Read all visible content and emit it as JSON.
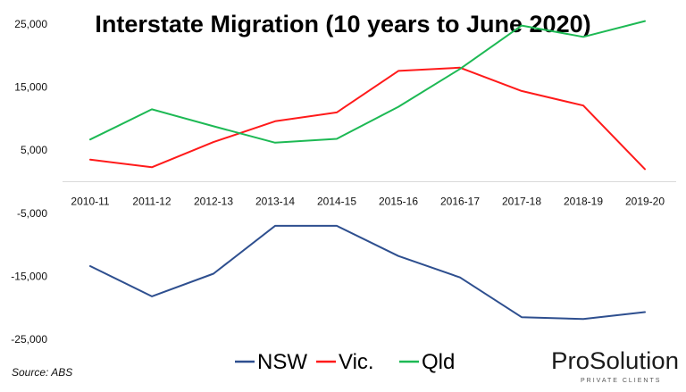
{
  "chart_data": {
    "type": "line",
    "title": "Interstate Migration (10 years to June 2020)",
    "categories": [
      "2010-11",
      "2011-12",
      "2012-13",
      "2013-14",
      "2014-15",
      "2015-16",
      "2016-17",
      "2017-18",
      "2018-19",
      "2019-20"
    ],
    "y_ticks": [
      "25,000",
      "15,000",
      "5,000",
      "-5,000",
      "-15,000",
      "-25,000"
    ],
    "ylim": [
      -28000,
      28000
    ],
    "grid": false,
    "legend_position": "bottom",
    "series": [
      {
        "name": "NSW",
        "color": "#2e4f8f",
        "values": [
          -13400,
          -18200,
          -14600,
          -7000,
          -7000,
          -11800,
          -15200,
          -21500,
          -21800,
          -20700
        ]
      },
      {
        "name": "Vic.",
        "color": "#ff1a1a",
        "values": [
          3500,
          2300,
          6300,
          9600,
          11000,
          17600,
          18100,
          14400,
          12100,
          2000
        ]
      },
      {
        "name": "Qld",
        "color": "#1db954",
        "values": [
          6700,
          11500,
          8800,
          6200,
          6800,
          11900,
          17900,
          24800,
          23000,
          25500
        ]
      }
    ],
    "source": "Source: ABS"
  },
  "branding": {
    "name": "ProSolution",
    "tagline": "PRIVATE CLIENTS"
  }
}
